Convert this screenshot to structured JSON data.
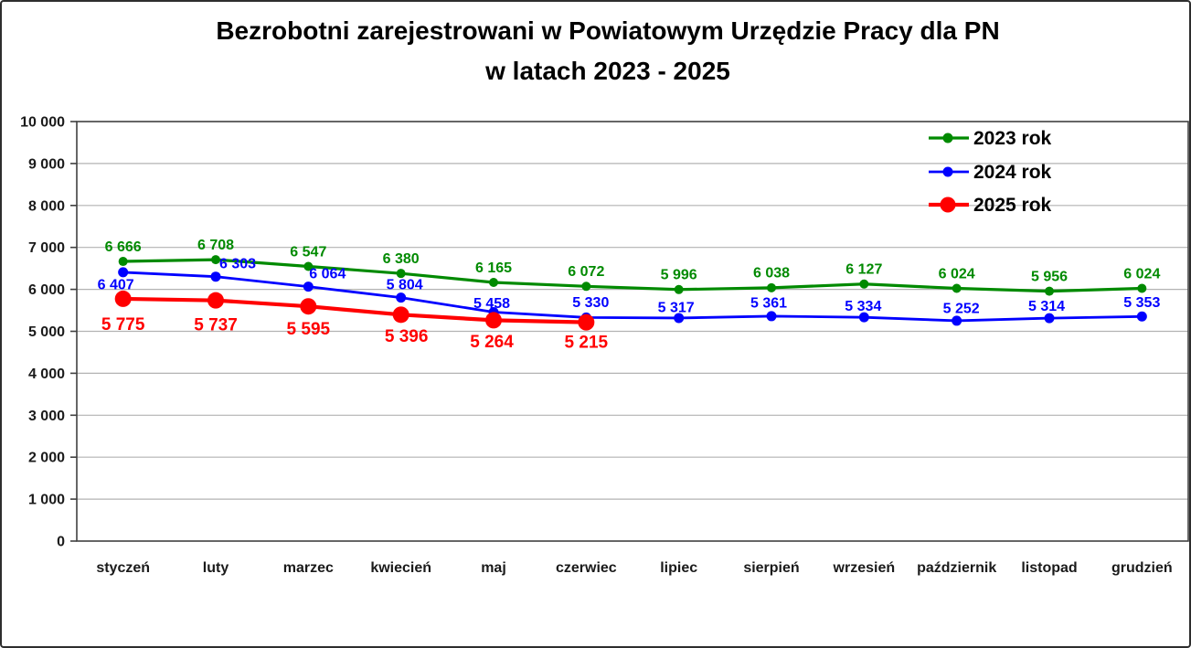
{
  "title": {
    "line1": "Bezrobotni zarejestrowani w Powiatowym Urzędzie Pracy dla PN",
    "line2": "w latach 2023 - 2025"
  },
  "chart_data": {
    "type": "line",
    "title": "Bezrobotni zarejestrowani w Powiatowym Urzędzie Pracy dla PN w latach 2023 - 2025",
    "xlabel": "",
    "ylabel": "",
    "ylim": [
      0,
      10000
    ],
    "y_step": 1000,
    "grid": true,
    "legend_position": "top-right-inside",
    "y_tick_labels": [
      "0",
      "1 000",
      "2 000",
      "3 000",
      "4 000",
      "5 000",
      "6 000",
      "7 000",
      "8 000",
      "9 000",
      "10 000"
    ],
    "categories": [
      "styczeń",
      "luty",
      "marzec",
      "kwiecień",
      "maj",
      "czerwiec",
      "lipiec",
      "sierpień",
      "wrzesień",
      "październik",
      "listopad",
      "grudzień"
    ],
    "series": [
      {
        "name": "2023 rok",
        "color": "#008A00",
        "values": [
          6666,
          6708,
          6547,
          6380,
          6165,
          6072,
          5996,
          6038,
          6127,
          6024,
          5956,
          6024
        ],
        "labels": [
          "6 666",
          "6 708",
          "6 547",
          "6 380",
          "6 165",
          "6 072",
          "5 996",
          "6 038",
          "6 127",
          "6 024",
          "5 956",
          "6 024"
        ]
      },
      {
        "name": "2024 rok",
        "color": "#0000FF",
        "values": [
          6407,
          6303,
          6064,
          5804,
          5458,
          5330,
          5317,
          5361,
          5334,
          5252,
          5314,
          5353
        ],
        "labels": [
          "6 407",
          "6 303",
          "6 064",
          "5 804",
          "5 458",
          "5 330",
          "5 317",
          "5 361",
          "5 334",
          "5 252",
          "5 314",
          "5 353"
        ]
      },
      {
        "name": "2025 rok",
        "color": "#FF0000",
        "values": [
          5775,
          5737,
          5595,
          5396,
          5264,
          5215
        ],
        "labels": [
          "5 775",
          "5 737",
          "5 595",
          "5 396",
          "5 264",
          "5 215"
        ]
      }
    ]
  },
  "legend": {
    "items": [
      {
        "label": "2023 rok",
        "color": "#008A00"
      },
      {
        "label": "2024 rok",
        "color": "#0000FF"
      },
      {
        "label": "2025 rok",
        "color": "#FF0000"
      }
    ]
  },
  "colors": {
    "gridline": "#B3B3B3",
    "axis": "#404040",
    "text": "#000000"
  }
}
